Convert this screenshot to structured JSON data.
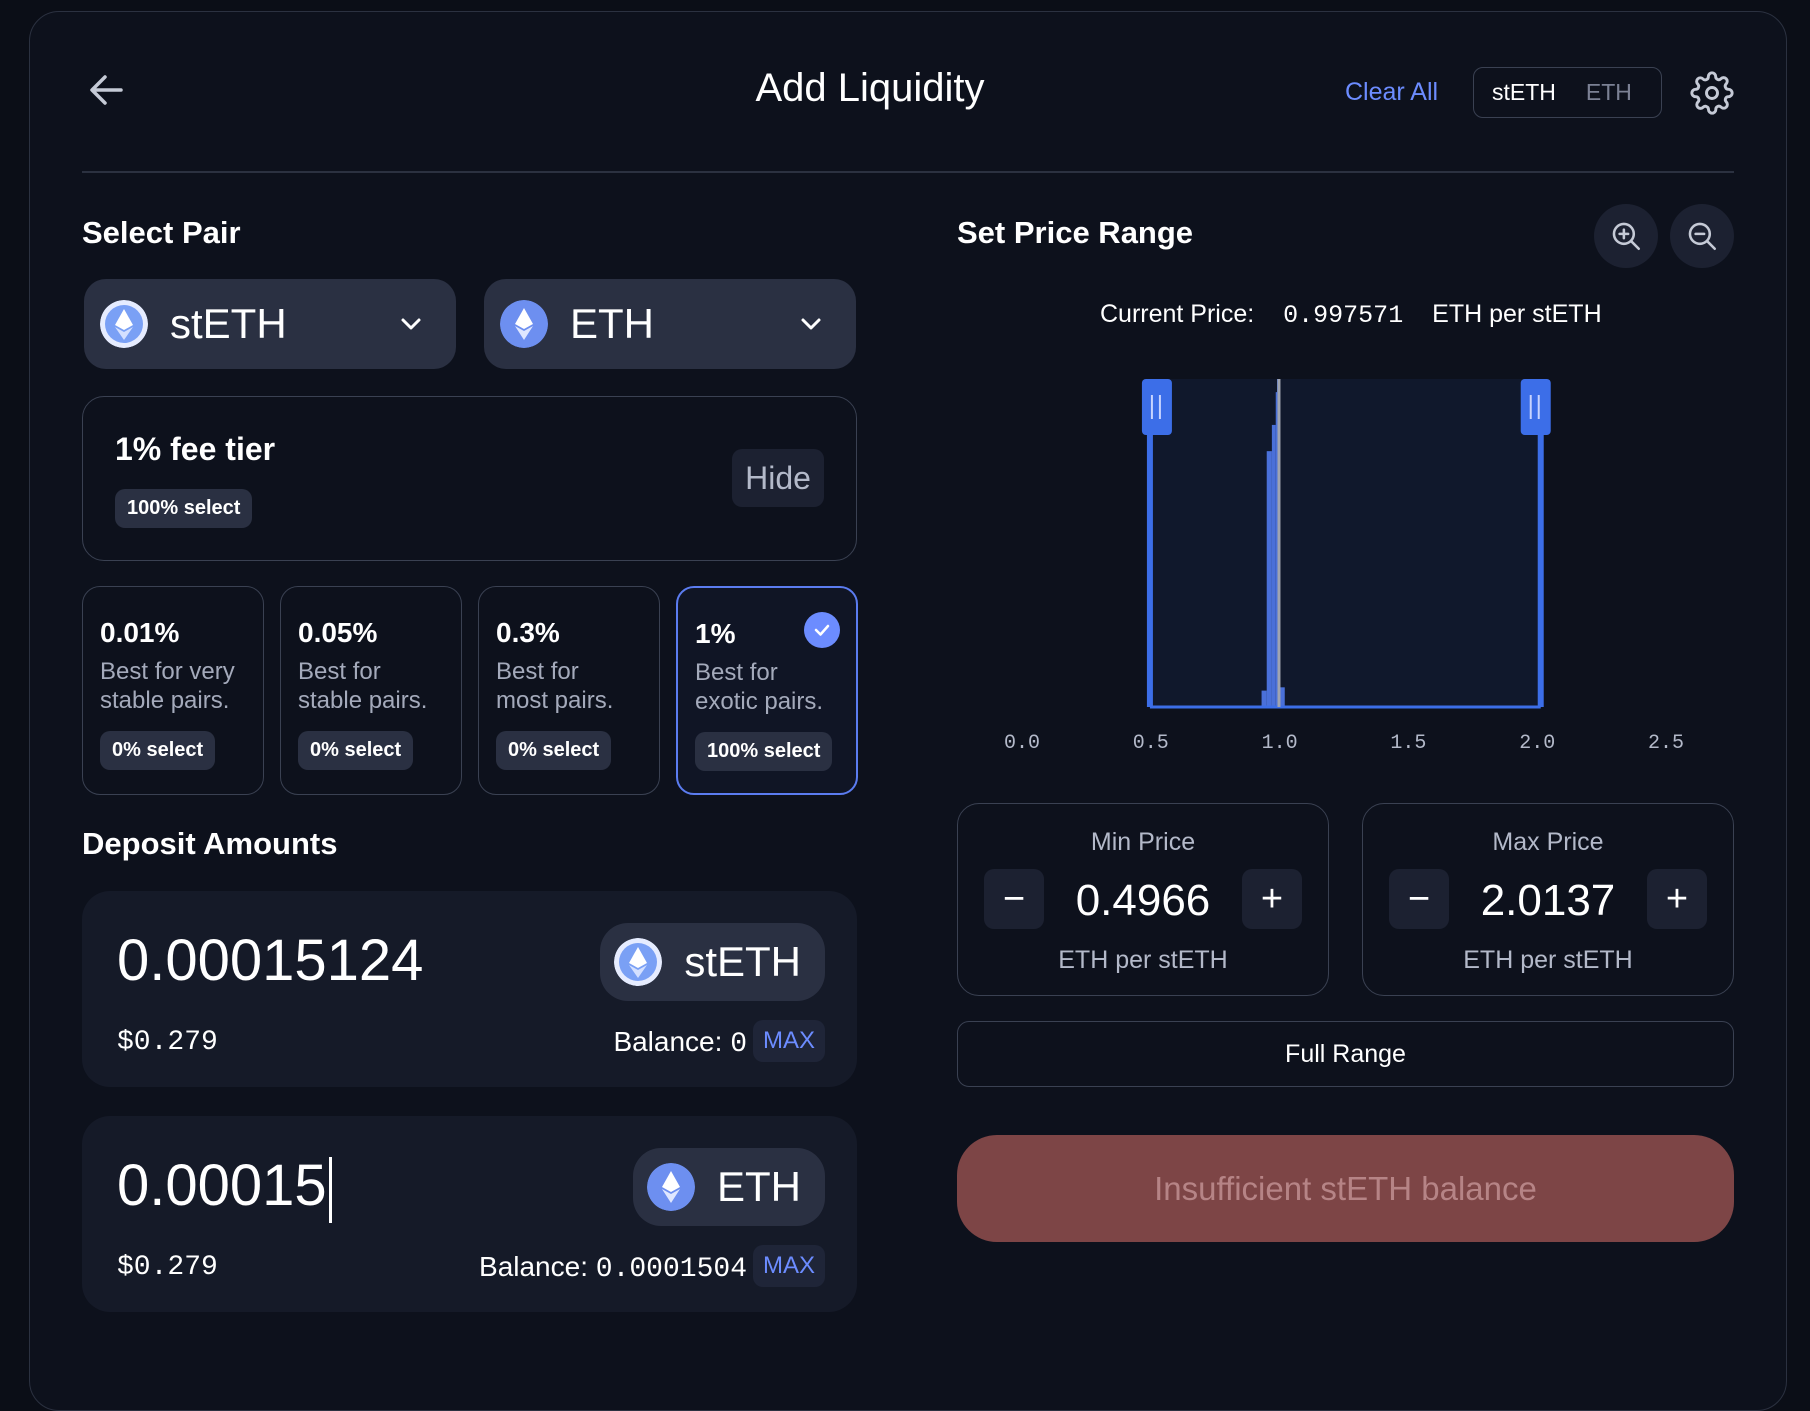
{
  "header": {
    "title": "Add Liquidity",
    "clear_all": "Clear All",
    "denomination_toggle": {
      "active": "stETH",
      "inactive": "ETH"
    }
  },
  "select_pair": {
    "heading": "Select Pair",
    "token_a": {
      "symbol": "stETH",
      "icon": "steth-icon"
    },
    "token_b": {
      "symbol": "ETH",
      "icon": "eth-icon"
    }
  },
  "fee_summary": {
    "title": "1% fee tier",
    "selection_badge": "100% select",
    "hide_label": "Hide"
  },
  "fee_tiers": [
    {
      "pct": "0.01%",
      "desc_line1": "Best for very",
      "desc_line2": "stable pairs.",
      "badge": "0% select",
      "selected": false
    },
    {
      "pct": "0.05%",
      "desc_line1": "Best for",
      "desc_line2": "stable pairs.",
      "badge": "0% select",
      "selected": false
    },
    {
      "pct": "0.3%",
      "desc_line1": "Best for",
      "desc_line2": "most pairs.",
      "badge": "0% select",
      "selected": false
    },
    {
      "pct": "1%",
      "desc_line1": "Best for",
      "desc_line2": "exotic pairs.",
      "badge": "100% select",
      "selected": true
    }
  ],
  "deposit": {
    "heading": "Deposit Amounts",
    "inputs": [
      {
        "amount": "0.00015124",
        "usd": "$0.279",
        "token": "stETH",
        "balance_label": "Balance:",
        "balance": "0",
        "max_label": "MAX"
      },
      {
        "amount": "0.00015",
        "usd": "$0.279",
        "token": "ETH",
        "balance_label": "Balance:",
        "balance": "0.0001504",
        "max_label": "MAX"
      }
    ]
  },
  "price_range": {
    "heading": "Set Price Range",
    "current_price_label": "Current Price:",
    "current_price_value": "0.997571",
    "current_price_unit": "ETH per stETH",
    "min": {
      "label": "Min Price",
      "value": "0.4966",
      "unit": "ETH per stETH",
      "dec": "−",
      "inc": "+"
    },
    "max": {
      "label": "Max Price",
      "value": "2.0137",
      "unit": "ETH per stETH",
      "dec": "−",
      "inc": "+"
    },
    "full_range_label": "Full Range"
  },
  "chart_data": {
    "type": "area",
    "title": "",
    "xlabel": "",
    "ylabel": "",
    "x_ticks": [
      "0.0",
      "0.5",
      "1.0",
      "1.5",
      "2.0",
      "2.5"
    ],
    "xlim": [
      0.0,
      2.5
    ],
    "liquidity": [
      {
        "x": 0.93,
        "y": 0.05
      },
      {
        "x": 0.95,
        "y": 0.78
      },
      {
        "x": 0.97,
        "y": 0.86
      },
      {
        "x": 0.985,
        "y": 0.96
      },
      {
        "x": 0.99,
        "y": 1.0
      },
      {
        "x": 0.995,
        "y": 0.9
      },
      {
        "x": 1.0,
        "y": 0.06
      },
      {
        "x": 1.02,
        "y": 0.02
      }
    ],
    "current_price": 0.997571,
    "range_min": 0.4966,
    "range_max": 2.0137,
    "colors": {
      "range_fill": "#10182c",
      "range_border": "#3c6ee8",
      "liquidity": "#4a70d9",
      "current_line": "#a0a4b0"
    }
  },
  "submit_label": "Insufficient stETH balance",
  "colors": {
    "accent": "#6c8cff",
    "error_button": "#7d4546"
  }
}
